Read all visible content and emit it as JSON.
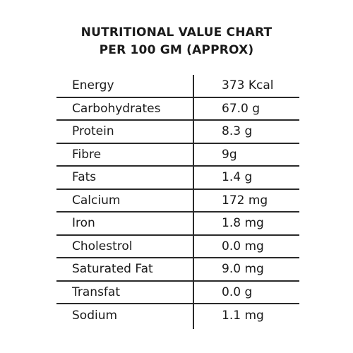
{
  "title": {
    "line1": "NUTRITIONAL VALUE CHART",
    "line2": "PER 100 GM (APPROX)"
  },
  "rows": [
    {
      "label": "Energy",
      "value": "373 Kcal"
    },
    {
      "label": "Carbohydrates",
      "value": "67.0 g"
    },
    {
      "label": "Protein",
      "value": "8.3 g"
    },
    {
      "label": "Fibre",
      "value": "9g"
    },
    {
      "label": "Fats",
      "value": "1.4 g"
    },
    {
      "label": "Calcium",
      "value": "172 mg"
    },
    {
      "label": "Iron",
      "value": "1.8 mg"
    },
    {
      "label": "Cholestrol",
      "value": "0.0 mg"
    },
    {
      "label": "Saturated Fat",
      "value": "9.0 mg"
    },
    {
      "label": "Transfat",
      "value": "0.0 g"
    },
    {
      "label": "Sodium",
      "value": "1.1 mg"
    }
  ]
}
